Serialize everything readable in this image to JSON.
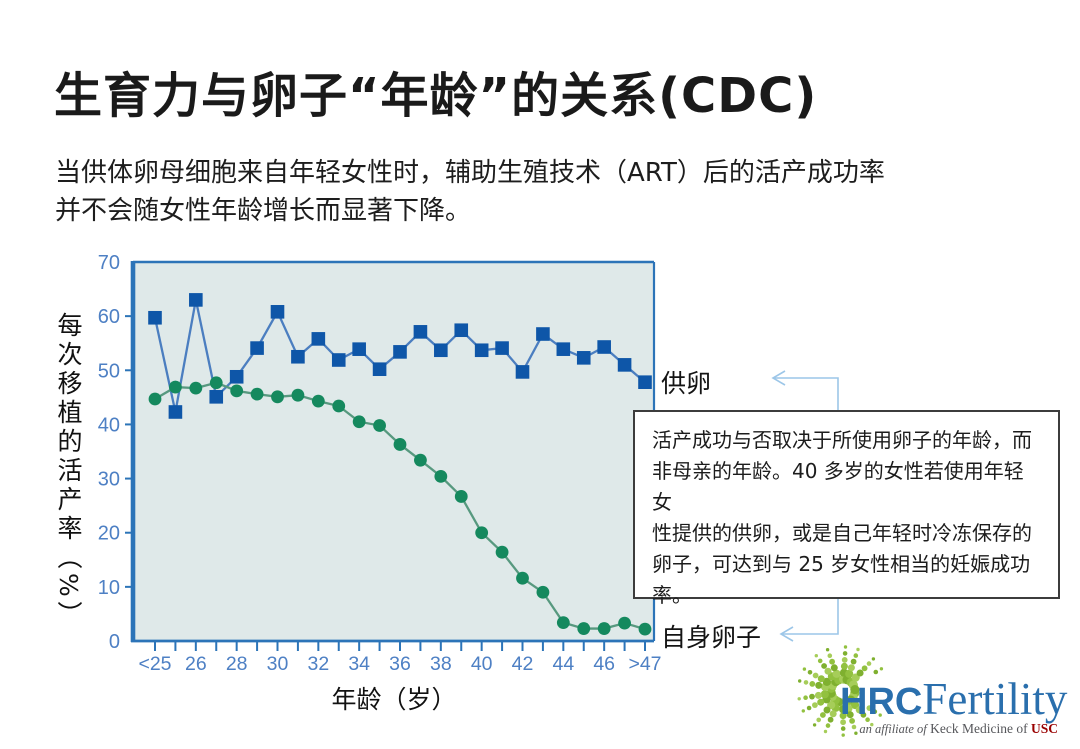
{
  "slide": {
    "title": "生育力与卵子“年龄”的关系(CDC)",
    "subtitle": "当供体卵母细胞来自年轻女性时，辅助生殖技术（ART）后的活产成功率\n并不会随女性年龄增长而显著下降。"
  },
  "callout": {
    "text": "活产成功与否取决于所使用卵子的年龄，而\n非母亲的年龄。40 多岁的女性若使用年轻女\n性提供的供卵，或是自己年轻时冷冻保存的\n卵子，可达到与 25 岁女性相当的妊娠成功\n率。"
  },
  "chart_data": {
    "type": "line",
    "title": "",
    "xlabel": "年龄（岁）",
    "ylabel": "每次移植的活产率（%）",
    "ylim": [
      0,
      70
    ],
    "ytick_step": 10,
    "grid": false,
    "legend_position": "labels-right-of-plot",
    "x": [
      "<25",
      "25",
      "26",
      "27",
      "28",
      "29",
      "30",
      "31",
      "32",
      "33",
      "34",
      "35",
      "36",
      "37",
      "38",
      "39",
      "40",
      "41",
      "42",
      "43",
      "44",
      "45",
      "46",
      "47",
      ">47"
    ],
    "x_tick_labels": [
      "<25",
      "26",
      "28",
      "30",
      "32",
      "34",
      "36",
      "38",
      "40",
      "42",
      "44",
      "46",
      ">47"
    ],
    "label_every": 2,
    "plot_bg": "#dfe9e9",
    "axis_color": "#2c74b8",
    "tick_label_color": "#4e80c4",
    "series": [
      {
        "name": "供卵",
        "marker": "square",
        "marker_color": "#0e56a8",
        "line_color": "#4b7ec0",
        "values": [
          59.7,
          42.3,
          63,
          45.1,
          48.8,
          54.1,
          60.8,
          52.5,
          55.8,
          51.9,
          53.9,
          50.2,
          53.4,
          57.1,
          53.7,
          57.4,
          53.7,
          54.1,
          49.7,
          56.7,
          53.9,
          52.3,
          54.3,
          51,
          47.8
        ]
      },
      {
        "name": "自身卵子",
        "marker": "circle",
        "marker_color": "#15895e",
        "line_color": "#57997f",
        "values": [
          44.7,
          46.9,
          46.7,
          47.7,
          46.2,
          45.6,
          45.1,
          45.4,
          44.3,
          43.4,
          40.5,
          39.8,
          36.3,
          33.4,
          30.4,
          26.7,
          20,
          16.4,
          11.6,
          9,
          3.4,
          2.3,
          2.3,
          3.3,
          2.2
        ]
      }
    ]
  },
  "annotations": {
    "arrow_color": "#9cc6e8"
  },
  "logo": {
    "hrc": "HRC",
    "fertility": "Fertility",
    "tagline_prefix": "an affiliate of",
    "tagline_mid": "Keck Medicine of",
    "tagline_usc": "USC",
    "brand_blue": "#2a6fad",
    "usc_red": "#990000",
    "dot_greens": [
      "#92c13f",
      "#a6cd59",
      "#7fb02f"
    ]
  }
}
